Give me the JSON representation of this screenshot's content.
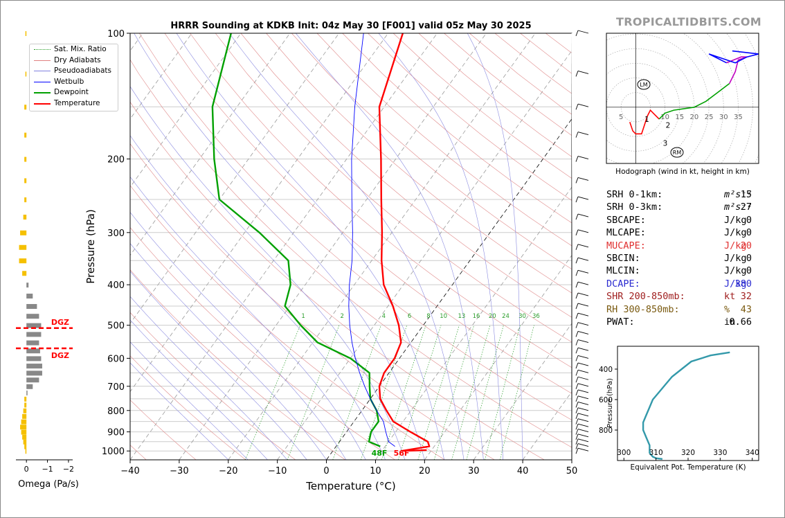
{
  "title": "HRRR Sounding at KDKB Init: 04z May 30 [F001] valid 05z May 30 2025",
  "brand": "TROPICALTIDBITS.COM",
  "legend": {
    "items": [
      {
        "label": "Sat. Mix. Ratio",
        "color": "#2a9d2a",
        "style": "dotted"
      },
      {
        "label": "Dry Adiabats",
        "color": "#e08080",
        "style": "solid-thin"
      },
      {
        "label": "Pseudoadiabats",
        "color": "#8080e0",
        "style": "solid-thin"
      },
      {
        "label": "Wetbulb",
        "color": "#0000ff",
        "style": "solid"
      },
      {
        "label": "Dewpoint",
        "color": "#00a000",
        "style": "thick"
      },
      {
        "label": "Temperature",
        "color": "#ff0000",
        "style": "thick"
      }
    ]
  },
  "skewt": {
    "xlabel": "Temperature (°C)",
    "ylabel": "Pressure (hPa)",
    "x_ticks": [
      "−40",
      "−30",
      "−20",
      "−10",
      "0",
      "10",
      "20",
      "30",
      "40",
      "50"
    ],
    "y_ticks": [
      "100",
      "200",
      "300",
      "400",
      "500",
      "600",
      "700",
      "800",
      "900",
      "1000"
    ],
    "mixing_ratio_labels": [
      "1",
      "2",
      "4",
      "6",
      "8",
      "10",
      "13",
      "16",
      "20",
      "24",
      "30",
      "36"
    ],
    "surface_dewpoint_label": "48F",
    "surface_temp_label": "56F"
  },
  "omega": {
    "xlabel": "Omega (Pa/s)",
    "x_ticks": [
      "0",
      "−1",
      "−2"
    ],
    "dgz_labels": [
      "DGZ",
      "DGZ"
    ]
  },
  "hodograph": {
    "caption": "Hodograph (wind in kt, height in km)",
    "ring_labels": [
      "5",
      "10",
      "15",
      "20",
      "25",
      "30",
      "35"
    ],
    "height_labels": [
      "1",
      "2",
      "3",
      "6",
      "9"
    ],
    "lm_label": "LM",
    "rm_label": "RM"
  },
  "stats": [
    {
      "label": "SRH 0-1km:",
      "value": "15",
      "unit": "m²s⁻²",
      "color": "#000000"
    },
    {
      "label": "SRH 0-3km:",
      "value": "27",
      "unit": "m²s⁻²",
      "color": "#000000"
    },
    {
      "label": "SBCAPE:",
      "value": "0",
      "unit": "J/kg",
      "color": "#000000"
    },
    {
      "label": "MLCAPE:",
      "value": "0",
      "unit": "J/kg",
      "color": "#000000"
    },
    {
      "label": "MUCAPE:",
      "value": "20",
      "unit": "J/kg",
      "color": "#e03030"
    },
    {
      "label": "SBCIN:",
      "value": "0",
      "unit": "J/kg",
      "color": "#000000"
    },
    {
      "label": "MLCIN:",
      "value": "0",
      "unit": "J/kg",
      "color": "#000000"
    },
    {
      "label": "DCAPE:",
      "value": "380",
      "unit": "J/kg",
      "color": "#2a2ad0"
    },
    {
      "label": "SHR 200-850mb:",
      "value": "32",
      "unit": "kt",
      "color": "#a02020"
    },
    {
      "label": "RH 300-850mb:",
      "value": "43",
      "unit": "%",
      "color": "#7a5a10"
    },
    {
      "label": "PWAT:",
      "value": "0.66",
      "unit": "in",
      "color": "#000000"
    }
  ],
  "theta_plot": {
    "xlabel": "Equivalent Pot. Temperature (K)",
    "ylabel": "Pressure (hPa)",
    "x_ticks": [
      "300",
      "310",
      "320",
      "330",
      "340"
    ],
    "y_ticks": [
      "400",
      "600",
      "800"
    ]
  },
  "chart_data": [
    {
      "type": "line",
      "name": "skew-t",
      "xlim": [
        -40,
        50
      ],
      "ylim": [
        1050,
        100
      ],
      "y_scale": "log",
      "series": [
        {
          "name": "Temperature",
          "color": "#ff0000",
          "points": [
            [
              14,
              1000
            ],
            [
              19,
              975
            ],
            [
              18,
              950
            ],
            [
              13,
              900
            ],
            [
              8,
              850
            ],
            [
              5,
              800
            ],
            [
              2,
              750
            ],
            [
              0,
              700
            ],
            [
              -1,
              650
            ],
            [
              -1,
              600
            ],
            [
              -2,
              550
            ],
            [
              -5,
              500
            ],
            [
              -9,
              450
            ],
            [
              -14,
              400
            ],
            [
              -18,
              350
            ],
            [
              -22,
              300
            ],
            [
              -27,
              250
            ],
            [
              -33,
              200
            ],
            [
              -41,
              150
            ],
            [
              -47,
              100
            ]
          ]
        },
        {
          "name": "Dewpoint",
          "color": "#00a000",
          "points": [
            [
              9,
              975
            ],
            [
              6,
              950
            ],
            [
              5,
              900
            ],
            [
              5,
              850
            ],
            [
              3,
              800
            ],
            [
              0,
              750
            ],
            [
              -2,
              700
            ],
            [
              -4,
              650
            ],
            [
              -10,
              600
            ],
            [
              -19,
              550
            ],
            [
              -25,
              500
            ],
            [
              -31,
              450
            ],
            [
              -33,
              400
            ],
            [
              -37,
              350
            ],
            [
              -47,
              300
            ],
            [
              -60,
              250
            ],
            [
              -67,
              200
            ],
            [
              -75,
              150
            ],
            [
              -82,
              100
            ]
          ]
        },
        {
          "name": "Wetbulb",
          "color": "#0000ff",
          "points": [
            [
              12,
              975
            ],
            [
              10,
              950
            ],
            [
              8,
              900
            ],
            [
              6,
              850
            ],
            [
              3,
              800
            ],
            [
              0,
              750
            ],
            [
              -3,
              700
            ],
            [
              -6,
              650
            ],
            [
              -9,
              600
            ],
            [
              -12,
              550
            ],
            [
              -15,
              500
            ],
            [
              -18,
              450
            ],
            [
              -21,
              400
            ],
            [
              -24,
              350
            ],
            [
              -28,
              300
            ],
            [
              -33,
              250
            ],
            [
              -39,
              200
            ],
            [
              -46,
              150
            ],
            [
              -55,
              100
            ]
          ]
        }
      ],
      "omega": {
        "pressure": [
          100,
          125,
          150,
          175,
          200,
          225,
          250,
          275,
          300,
          325,
          350,
          375,
          400,
          425,
          450,
          475,
          500,
          525,
          550,
          575,
          600,
          625,
          650,
          675,
          700,
          725,
          750,
          775,
          800,
          825,
          850,
          875,
          900,
          925,
          950,
          975,
          1000
        ],
        "values": [
          0.05,
          0.05,
          0.1,
          0.1,
          0.1,
          0.1,
          0.1,
          0.15,
          0.3,
          0.35,
          0.35,
          0.2,
          -0.1,
          -0.3,
          -0.5,
          -0.6,
          -0.7,
          -0.7,
          -0.6,
          -0.65,
          -0.7,
          -0.75,
          -0.75,
          -0.6,
          -0.3,
          -0.05,
          0.1,
          0.1,
          0.15,
          0.2,
          0.25,
          0.3,
          0.25,
          0.2,
          0.15,
          0.1,
          0.05
        ],
        "xlim": [
          0.5,
          -2.2
        ]
      },
      "dgz": [
        508,
        568
      ]
    },
    {
      "type": "line",
      "name": "hodograph",
      "xlim": [
        -10,
        42
      ],
      "ylim": [
        -19,
        25
      ],
      "series": [
        {
          "name": "0-1km",
          "color": "#ff0000",
          "points": [
            [
              -2,
              -5
            ],
            [
              -1,
              -8
            ],
            [
              0,
              -9
            ],
            [
              2,
              -9
            ],
            [
              3,
              -6
            ],
            [
              4,
              -3
            ],
            [
              5,
              -1
            ],
            [
              6,
              -2
            ],
            [
              8,
              -4
            ]
          ]
        },
        {
          "name": "1-3km",
          "color": "#00a000",
          "points": [
            [
              8,
              -4
            ],
            [
              10,
              -2
            ],
            [
              13,
              -1
            ],
            [
              20,
              0
            ],
            [
              24,
              2
            ],
            [
              28,
              5
            ],
            [
              32,
              8
            ]
          ]
        },
        {
          "name": "3-6km",
          "color": "#c000c0",
          "points": [
            [
              32,
              8
            ],
            [
              34,
              12
            ],
            [
              35,
              16
            ],
            [
              38,
              17
            ],
            [
              36,
              17
            ],
            [
              31,
              15
            ]
          ]
        },
        {
          "name": "6-9km",
          "color": "#0000ff",
          "points": [
            [
              31,
              15
            ],
            [
              25,
              18
            ],
            [
              34,
              15
            ],
            [
              38,
              17
            ],
            [
              42,
              18
            ],
            [
              33,
              19
            ]
          ]
        }
      ]
    },
    {
      "type": "line",
      "name": "equivalent potential temperature",
      "xlim": [
        298,
        342
      ],
      "ylim": [
        1000,
        250
      ],
      "series": [
        {
          "name": "theta-e",
          "color": "#3399aa",
          "points": [
            [
              312,
              990
            ],
            [
              310,
              985
            ],
            [
              309,
              975
            ],
            [
              308,
              950
            ],
            [
              308,
              900
            ],
            [
              307,
              850
            ],
            [
              306,
              800
            ],
            [
              306,
              750
            ],
            [
              307,
              700
            ],
            [
              308,
              650
            ],
            [
              309,
              600
            ],
            [
              311,
              550
            ],
            [
              313,
              500
            ],
            [
              315,
              450
            ],
            [
              318,
              400
            ],
            [
              321,
              350
            ],
            [
              327,
              310
            ],
            [
              333,
              290
            ]
          ]
        }
      ]
    }
  ]
}
